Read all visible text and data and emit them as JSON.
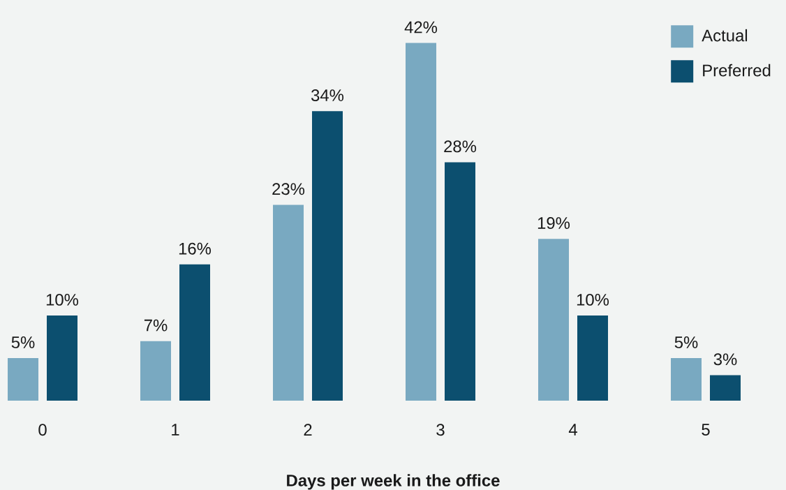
{
  "chart_data": {
    "type": "bar",
    "xlabel": "Days per week in the office",
    "categories": [
      "0",
      "1",
      "2",
      "3",
      "4",
      "5"
    ],
    "series": [
      {
        "name": "Actual",
        "color": "#79a9c1",
        "values": [
          5,
          7,
          23,
          42,
          19,
          5
        ],
        "value_labels": [
          "5%",
          "7%",
          "23%",
          "42%",
          "19%",
          "5%"
        ]
      },
      {
        "name": "Preferred",
        "color": "#0c4f6f",
        "values": [
          10,
          16,
          34,
          28,
          10,
          3
        ],
        "value_labels": [
          "10%",
          "16%",
          "34%",
          "28%",
          "10%",
          "3%"
        ]
      }
    ],
    "legend": "top right"
  }
}
